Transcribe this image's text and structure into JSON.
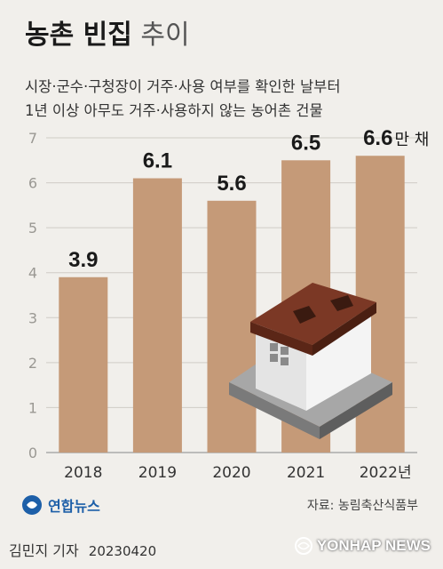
{
  "title": {
    "bold": "농촌 빈집",
    "light": "추이"
  },
  "subtitle": {
    "line1": "시장·군수·구청장이 거주·사용 여부를 확인한 날부터",
    "line2": "1년 이상 아무도 거주·사용하지 않는 농어촌 건물"
  },
  "chart_data": {
    "type": "bar",
    "categories": [
      "2018",
      "2019",
      "2020",
      "2021",
      "2022"
    ],
    "x_tick_labels": [
      "2018",
      "2019",
      "2020",
      "2021",
      "2022년"
    ],
    "values": [
      3.9,
      6.1,
      5.6,
      6.5,
      6.6
    ],
    "value_labels": [
      "3.9",
      "6.1",
      "5.6",
      "6.5",
      "6.6"
    ],
    "last_value_unit": "만 채",
    "yticks": [
      0,
      1,
      2,
      3,
      4,
      5,
      6,
      7
    ],
    "ylim": [
      0,
      7
    ],
    "grid": true,
    "bar_color": "#c59a78",
    "grid_color": "#cfccc6"
  },
  "footer": {
    "logo": "연합뉴스",
    "source": "자료: 농림축산식품부",
    "byline": "김민지 기자",
    "date": "20230420",
    "agency": "YONHAP NEWS"
  }
}
